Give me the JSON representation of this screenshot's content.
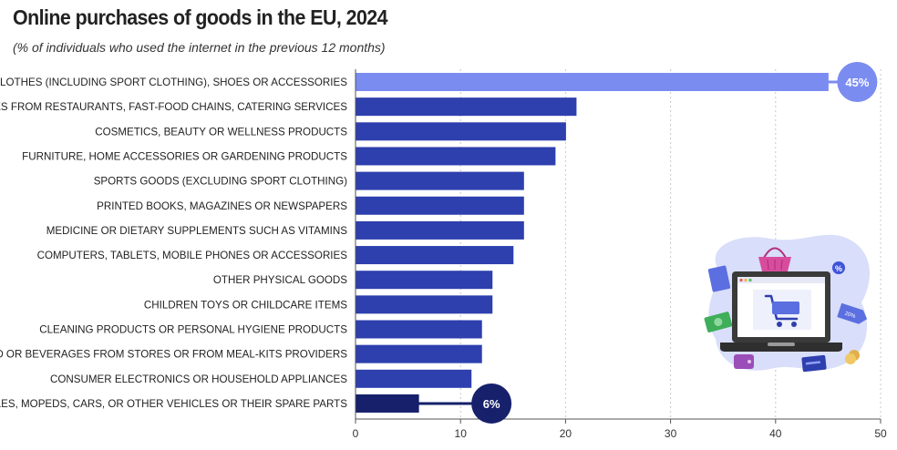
{
  "colors": {
    "bar": "#2E3FAE",
    "highlight_top": "#7B8CF1",
    "highlight_bottom": "#16206B",
    "grid": "#C8C8C8",
    "axis": "#555555",
    "illustration_blob": "#D9DEFA"
  },
  "chart_data": {
    "type": "bar",
    "orientation": "horizontal",
    "title": "Online purchases of goods in the EU, 2024",
    "subtitle": "(% of individuals who used the internet in the previous 12 months)",
    "xlabel": "",
    "ylabel": "",
    "xlim": [
      0,
      50
    ],
    "xticks": [
      0,
      10,
      20,
      30,
      40,
      50
    ],
    "grid": true,
    "categories": [
      "CLOTHES (INCLUDING SPORT CLOTHING), SHOES OR ACCESSORIES",
      "DELIVERIES FROM RESTAURANTS, FAST-FOOD CHAINS, CATERING SERVICES",
      "COSMETICS, BEAUTY OR WELLNESS PRODUCTS",
      "FURNITURE, HOME ACCESSORIES OR GARDENING PRODUCTS",
      "SPORTS GOODS (EXCLUDING SPORT CLOTHING)",
      "PRINTED BOOKS, MAGAZINES OR NEWSPAPERS",
      "MEDICINE OR DIETARY SUPPLEMENTS SUCH AS VITAMINS",
      "COMPUTERS, TABLETS, MOBILE PHONES OR ACCESSORIES",
      "OTHER PHYSICAL GOODS",
      "CHILDREN TOYS OR CHILDCARE ITEMS",
      "CLEANING PRODUCTS OR PERSONAL HYGIENE PRODUCTS",
      "FOOD OR BEVERAGES FROM STORES OR FROM MEAL-KITS PROVIDERS",
      "CONSUMER ELECTRONICS OR HOUSEHOLD APPLIANCES",
      "BICYCLES, MOPEDS, CARS, OR OTHER VEHICLES OR THEIR SPARE PARTS"
    ],
    "values": [
      45,
      21,
      20,
      19,
      16,
      16,
      16,
      15,
      13,
      13,
      12,
      12,
      11,
      6
    ],
    "callouts": [
      {
        "index": 0,
        "label": "45%",
        "style": "highlight_top"
      },
      {
        "index": 13,
        "label": "6%",
        "style": "highlight_bottom"
      }
    ]
  },
  "illustration": {
    "name": "online-shopping-illustration",
    "discount_tag": "%",
    "price_tag": "20%"
  }
}
